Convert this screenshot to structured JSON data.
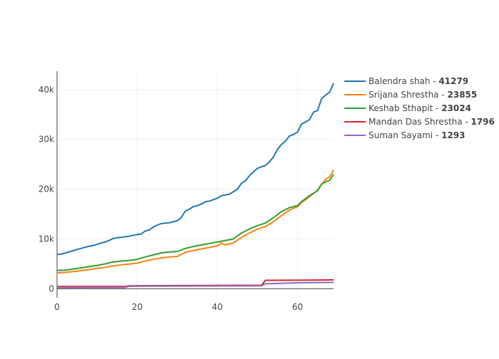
{
  "chart_data": {
    "type": "line",
    "xlim": [
      0,
      69
    ],
    "ylim": [
      -1800,
      43700
    ],
    "x_ticks": [
      0,
      20,
      40,
      60
    ],
    "y_ticks": [
      0,
      10000,
      20000,
      30000,
      40000
    ],
    "x_tick_labels": [
      "0",
      "20",
      "40",
      "60"
    ],
    "y_tick_labels": [
      "0",
      "10k",
      "20k",
      "30k",
      "40k"
    ],
    "grid": true,
    "legend_position": "top-right, outside plot",
    "series": [
      {
        "name": "Balendra shah",
        "final_label": "41279",
        "color": "#1f77b4",
        "points": [
          [
            0,
            6900
          ],
          [
            1,
            6950
          ],
          [
            2,
            7150
          ],
          [
            3,
            7400
          ],
          [
            4,
            7650
          ],
          [
            5,
            7900
          ],
          [
            6,
            8100
          ],
          [
            7,
            8350
          ],
          [
            8,
            8550
          ],
          [
            9,
            8700
          ],
          [
            10,
            8900
          ],
          [
            11,
            9200
          ],
          [
            12,
            9400
          ],
          [
            13,
            9700
          ],
          [
            14,
            10100
          ],
          [
            15,
            10250
          ],
          [
            16,
            10350
          ],
          [
            17,
            10450
          ],
          [
            18,
            10550
          ],
          [
            19,
            10750
          ],
          [
            20,
            10900
          ],
          [
            21,
            11000
          ],
          [
            22,
            11600
          ],
          [
            23,
            11800
          ],
          [
            24,
            12400
          ],
          [
            25,
            12800
          ],
          [
            26,
            13100
          ],
          [
            27,
            13200
          ],
          [
            28,
            13250
          ],
          [
            29,
            13450
          ],
          [
            30,
            13700
          ],
          [
            31,
            14300
          ],
          [
            32,
            15600
          ],
          [
            33,
            16000
          ],
          [
            34,
            16500
          ],
          [
            35,
            16700
          ],
          [
            36,
            17000
          ],
          [
            37,
            17500
          ],
          [
            38,
            17600
          ],
          [
            39,
            17900
          ],
          [
            40,
            18200
          ],
          [
            41,
            18700
          ],
          [
            42,
            18850
          ],
          [
            43,
            19000
          ],
          [
            44,
            19500
          ],
          [
            45,
            20000
          ],
          [
            46,
            21200
          ],
          [
            47,
            21700
          ],
          [
            48,
            22700
          ],
          [
            49,
            23500
          ],
          [
            50,
            24200
          ],
          [
            51,
            24500
          ],
          [
            52,
            24800
          ],
          [
            53,
            25500
          ],
          [
            54,
            26500
          ],
          [
            55,
            28000
          ],
          [
            56,
            29000
          ],
          [
            57,
            29700
          ],
          [
            58,
            30700
          ],
          [
            59,
            31000
          ],
          [
            60,
            31500
          ],
          [
            61,
            33100
          ],
          [
            62,
            33500
          ],
          [
            63,
            34000
          ],
          [
            64,
            35500
          ],
          [
            65,
            35800
          ],
          [
            66,
            38200
          ],
          [
            67,
            38900
          ],
          [
            68,
            39500
          ],
          [
            69,
            41279
          ]
        ]
      },
      {
        "name": "Srijana Shrestha",
        "final_label": "23855",
        "color": "#ff7f0e",
        "points": [
          [
            0,
            3200
          ],
          [
            2,
            3300
          ],
          [
            4,
            3450
          ],
          [
            6,
            3650
          ],
          [
            8,
            3850
          ],
          [
            10,
            4100
          ],
          [
            12,
            4300
          ],
          [
            14,
            4600
          ],
          [
            16,
            4800
          ],
          [
            18,
            4950
          ],
          [
            20,
            5150
          ],
          [
            22,
            5600
          ],
          [
            24,
            5900
          ],
          [
            26,
            6200
          ],
          [
            28,
            6400
          ],
          [
            30,
            6500
          ],
          [
            32,
            7300
          ],
          [
            34,
            7700
          ],
          [
            36,
            8000
          ],
          [
            38,
            8300
          ],
          [
            40,
            8600
          ],
          [
            41,
            9200
          ],
          [
            42,
            8800
          ],
          [
            44,
            9200
          ],
          [
            46,
            10300
          ],
          [
            48,
            11200
          ],
          [
            50,
            12000
          ],
          [
            52,
            12500
          ],
          [
            54,
            13500
          ],
          [
            56,
            14700
          ],
          [
            58,
            15800
          ],
          [
            60,
            16500
          ],
          [
            61,
            17300
          ],
          [
            63,
            18500
          ],
          [
            65,
            19800
          ],
          [
            66,
            21000
          ],
          [
            67,
            22000
          ],
          [
            68,
            22500
          ],
          [
            69,
            23855
          ]
        ]
      },
      {
        "name": "Keshab Sthapit",
        "final_label": "23024",
        "color": "#2ca02c",
        "points": [
          [
            0,
            3700
          ],
          [
            2,
            3750
          ],
          [
            4,
            3950
          ],
          [
            6,
            4200
          ],
          [
            8,
            4450
          ],
          [
            10,
            4700
          ],
          [
            12,
            5000
          ],
          [
            14,
            5400
          ],
          [
            16,
            5550
          ],
          [
            18,
            5700
          ],
          [
            20,
            5900
          ],
          [
            22,
            6400
          ],
          [
            24,
            6800
          ],
          [
            26,
            7200
          ],
          [
            28,
            7400
          ],
          [
            30,
            7500
          ],
          [
            32,
            8100
          ],
          [
            34,
            8500
          ],
          [
            36,
            8800
          ],
          [
            38,
            9100
          ],
          [
            40,
            9400
          ],
          [
            42,
            9700
          ],
          [
            44,
            10000
          ],
          [
            46,
            11200
          ],
          [
            48,
            12000
          ],
          [
            50,
            12700
          ],
          [
            52,
            13200
          ],
          [
            54,
            14300
          ],
          [
            56,
            15500
          ],
          [
            58,
            16300
          ],
          [
            60,
            16700
          ],
          [
            61,
            17500
          ],
          [
            63,
            18700
          ],
          [
            65,
            19700
          ],
          [
            66,
            21000
          ],
          [
            67,
            21500
          ],
          [
            68,
            21800
          ],
          [
            69,
            23024
          ]
        ]
      },
      {
        "name": "Mandan Das Shrestha",
        "final_label": "1796",
        "color": "#d62728",
        "points": [
          [
            0,
            450
          ],
          [
            17,
            460
          ],
          [
            18,
            600
          ],
          [
            30,
            650
          ],
          [
            51,
            700
          ],
          [
            52,
            1700
          ],
          [
            60,
            1720
          ],
          [
            69,
            1796
          ]
        ]
      },
      {
        "name": "Suman Sayami",
        "final_label": "1293",
        "color": "#9467bd",
        "points": [
          [
            0,
            250
          ],
          [
            17,
            260
          ],
          [
            18,
            500
          ],
          [
            30,
            550
          ],
          [
            51,
            600
          ],
          [
            52,
            1000
          ],
          [
            56,
            1100
          ],
          [
            60,
            1200
          ],
          [
            69,
            1293
          ]
        ]
      }
    ]
  }
}
